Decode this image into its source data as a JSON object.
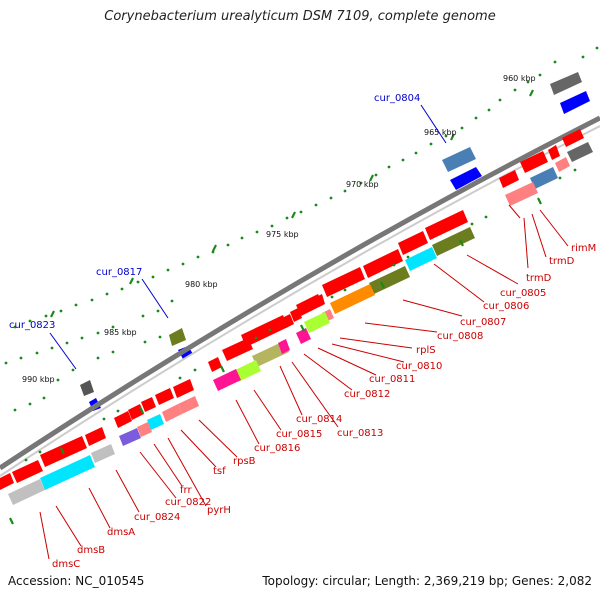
{
  "header": {
    "title": "Corynebacterium urealyticum DSM 7109, complete genome"
  },
  "footer": {
    "accession": "Accession: NC_010545",
    "topology": "Topology: circular; Length: 2,369,219 bp; Genes: 2,082"
  },
  "ruler": {
    "unit": "kbp",
    "ticks": [
      {
        "label": "960 kbp"
      },
      {
        "label": "965 kbp"
      },
      {
        "label": "970 kbp"
      },
      {
        "label": "975 kbp"
      },
      {
        "label": "980 kbp"
      },
      {
        "label": "985 kbp"
      },
      {
        "label": "990 kbp"
      }
    ]
  },
  "labels": {
    "outer_blue": [
      {
        "text": "cur_0804",
        "color": "#0000cc"
      },
      {
        "text": "cur_0817",
        "color": "#0000cc"
      },
      {
        "text": "cur_0823",
        "color": "#0000cc"
      }
    ],
    "inner_red": [
      {
        "text": "rimM"
      },
      {
        "text": "trmD"
      },
      {
        "text": "trmD"
      },
      {
        "text": "cur_0805"
      },
      {
        "text": "cur_0806"
      },
      {
        "text": "cur_0807"
      },
      {
        "text": "cur_0808"
      },
      {
        "text": "rplS"
      },
      {
        "text": "cur_0810"
      },
      {
        "text": "cur_0811"
      },
      {
        "text": "cur_0812"
      },
      {
        "text": "cur_0813"
      },
      {
        "text": "cur_0814"
      },
      {
        "text": "cur_0815"
      },
      {
        "text": "cur_0816"
      },
      {
        "text": "rpsB"
      },
      {
        "text": "tsf"
      },
      {
        "text": "pyrH"
      },
      {
        "text": "frr"
      },
      {
        "text": "cur_0822"
      },
      {
        "text": "cur_0824"
      },
      {
        "text": "dmsA"
      },
      {
        "text": "dmsB"
      },
      {
        "text": "dmsC"
      }
    ],
    "label_color": "#cc0000"
  },
  "colors": {
    "gene_red": "#ff0000",
    "outer_blue": "#0000ff",
    "outer_steel": "#4a7fb5",
    "outer_gray": "#666666",
    "backbone": "#888888",
    "tick_green": "#1a8a1a"
  }
}
